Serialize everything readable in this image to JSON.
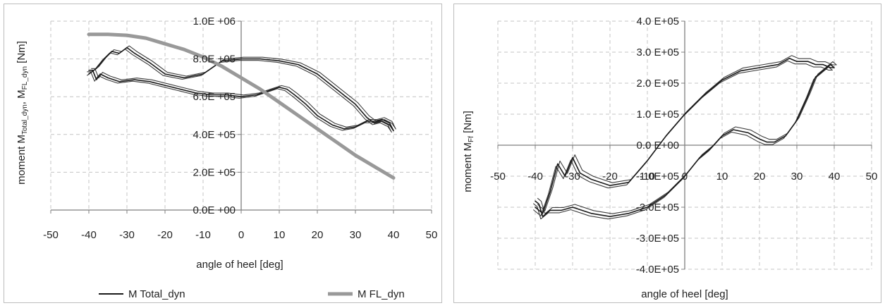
{
  "chart_data": [
    {
      "type": "line",
      "title": "",
      "xlabel": "angle of heel [deg]",
      "ylabel": "moment M_Total_dyn, M_FL_dyn [Nm]",
      "ylabel_parts": {
        "p1": "moment M",
        "s1": "Total_dyn",
        "p2": ", M",
        "s2": "FL_dyn",
        "p3": " [Nm]"
      },
      "xlim": [
        -50,
        50
      ],
      "ylim": [
        0,
        1000000
      ],
      "x_ticks": [
        -50,
        -40,
        -30,
        -20,
        -10,
        0,
        10,
        20,
        30,
        40,
        50
      ],
      "x_tick_labels": [
        "-50",
        "-40",
        "-30",
        "-20",
        "-10",
        "0",
        "10",
        "20",
        "30",
        "40",
        "50"
      ],
      "y_ticks": [
        0,
        200000,
        400000,
        600000,
        800000,
        1000000
      ],
      "y_tick_labels": [
        "0.0E +00",
        "2.0E +05",
        "4.0E +05",
        "6.0E +05",
        "8.0E +05",
        "1.0E +06"
      ],
      "grid": true,
      "legend": "bottom",
      "series": [
        {
          "name": "M Total_dyn",
          "color": "#1a1a1a",
          "x": [
            -40,
            -38,
            -36,
            -34,
            -32,
            -30,
            -28,
            -24,
            -20,
            -15,
            -10,
            -5,
            0,
            5,
            10,
            15,
            20,
            25,
            30,
            33,
            35,
            37,
            39,
            40,
            39,
            37,
            35,
            33,
            30,
            27,
            24,
            20,
            17,
            14,
            12,
            10,
            7,
            4,
            0,
            -4,
            -8,
            -12,
            -16,
            -20,
            -24,
            -28,
            -32,
            -35,
            -37,
            -38,
            -39,
            -40
          ],
          "y": [
            720000,
            750000,
            800000,
            840000,
            830000,
            860000,
            830000,
            780000,
            720000,
            700000,
            720000,
            790000,
            800000,
            800000,
            790000,
            770000,
            720000,
            640000,
            560000,
            490000,
            460000,
            470000,
            450000,
            420000,
            460000,
            480000,
            470000,
            470000,
            440000,
            430000,
            450000,
            500000,
            560000,
            610000,
            640000,
            650000,
            630000,
            610000,
            600000,
            610000,
            610000,
            620000,
            640000,
            660000,
            680000,
            690000,
            680000,
            700000,
            720000,
            690000,
            740000,
            740000
          ]
        },
        {
          "name": "M FL_dyn",
          "color": "#999999",
          "x": [
            -40,
            -35,
            -30,
            -25,
            -20,
            -15,
            -10,
            -5,
            0,
            5,
            10,
            15,
            20,
            25,
            30,
            35,
            40
          ],
          "y": [
            930000,
            930000,
            925000,
            910000,
            880000,
            850000,
            810000,
            760000,
            700000,
            640000,
            570000,
            500000,
            430000,
            360000,
            290000,
            230000,
            170000
          ]
        }
      ]
    },
    {
      "type": "line",
      "title": "",
      "xlabel": "angle of heel [deg]",
      "ylabel": "moment M_Ff [Nm]",
      "ylabel_parts": {
        "p1": "moment M",
        "s1": "Ff",
        "p2": " [Nm]"
      },
      "xlim": [
        -50,
        50
      ],
      "ylim": [
        -400000,
        400000
      ],
      "x_ticks": [
        -50,
        -40,
        -30,
        -20,
        -10,
        0,
        10,
        20,
        30,
        40,
        50
      ],
      "x_tick_labels": [
        "-50",
        "-40",
        "-30",
        "-20",
        "-10",
        "0",
        "10",
        "20",
        "30",
        "40",
        "50"
      ],
      "y_ticks": [
        -400000,
        -300000,
        -200000,
        -100000,
        0,
        100000,
        200000,
        300000,
        400000
      ],
      "y_tick_labels": [
        "-4.0E+05",
        "-3.0E+05",
        "-2.0E+05",
        "-1.0E+05",
        "0.0 E+00",
        "1.0 E+05",
        "2.0 E+05",
        "3.0 E+05",
        "4.0 E+05"
      ],
      "grid": true,
      "legend": "none",
      "series": [
        {
          "name": "",
          "color": "#1a1a1a",
          "x": [
            -40,
            -38,
            -36,
            -34,
            -32,
            -30,
            -28,
            -25,
            -20,
            -15,
            -10,
            -5,
            0,
            5,
            10,
            15,
            20,
            25,
            28,
            30,
            33,
            35,
            37,
            39,
            40,
            39,
            37,
            35,
            33,
            30,
            27,
            24,
            22,
            20,
            17,
            13,
            10,
            7,
            4,
            0,
            -5,
            -10,
            -15,
            -20,
            -25,
            -30,
            -33,
            -36,
            -38,
            -39,
            -40
          ],
          "y": [
            -200000,
            -220000,
            -150000,
            -60000,
            -100000,
            -40000,
            -90000,
            -110000,
            -130000,
            -120000,
            -50000,
            30000,
            100000,
            160000,
            210000,
            240000,
            250000,
            260000,
            280000,
            270000,
            270000,
            260000,
            260000,
            250000,
            250000,
            260000,
            240000,
            220000,
            160000,
            80000,
            30000,
            10000,
            10000,
            20000,
            40000,
            50000,
            30000,
            -10000,
            -40000,
            -100000,
            -160000,
            -200000,
            -220000,
            -230000,
            -220000,
            -200000,
            -210000,
            -210000,
            -230000,
            -190000,
            -180000
          ]
        }
      ]
    }
  ]
}
